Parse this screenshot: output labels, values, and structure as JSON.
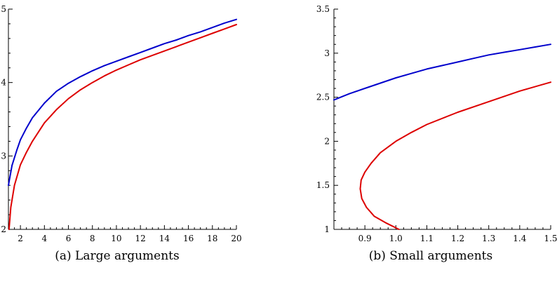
{
  "chart_data": [
    {
      "type": "line",
      "caption": "(a) Large arguments",
      "xlim": [
        1,
        20
      ],
      "ylim": [
        2,
        5
      ],
      "xticks": [
        2,
        4,
        6,
        8,
        10,
        12,
        14,
        16,
        18,
        20
      ],
      "xtick_labels": [
        "2",
        "4",
        "6",
        "8",
        "10",
        "12",
        "14",
        "16",
        "18",
        "20"
      ],
      "yticks": [
        2,
        3,
        4,
        5
      ],
      "ytick_labels": [
        "2",
        "3",
        "4",
        "5"
      ],
      "series": [
        {
          "color": "#0000cc",
          "points": [
            [
              1,
              2.6
            ],
            [
              1.3,
              2.87
            ],
            [
              1.7,
              3.08
            ],
            [
              2,
              3.22
            ],
            [
              2.5,
              3.38
            ],
            [
              3,
              3.52
            ],
            [
              4,
              3.72
            ],
            [
              5,
              3.88
            ],
            [
              6,
              3.99
            ],
            [
              7,
              4.08
            ],
            [
              8,
              4.16
            ],
            [
              9,
              4.23
            ],
            [
              10,
              4.29
            ],
            [
              11,
              4.35
            ],
            [
              12,
              4.41
            ],
            [
              13,
              4.47
            ],
            [
              14,
              4.53
            ],
            [
              15,
              4.58
            ],
            [
              16,
              4.64
            ],
            [
              17,
              4.69
            ],
            [
              18,
              4.75
            ],
            [
              19,
              4.81
            ],
            [
              20,
              4.86
            ]
          ]
        },
        {
          "color": "#dd0000",
          "points": [
            [
              1.05,
              2.0
            ],
            [
              1.2,
              2.3
            ],
            [
              1.5,
              2.6
            ],
            [
              2,
              2.88
            ],
            [
              2.5,
              3.05
            ],
            [
              3,
              3.2
            ],
            [
              4,
              3.45
            ],
            [
              5,
              3.63
            ],
            [
              6,
              3.78
            ],
            [
              7,
              3.9
            ],
            [
              8,
              4.0
            ],
            [
              9,
              4.09
            ],
            [
              10,
              4.17
            ],
            [
              11,
              4.24
            ],
            [
              12,
              4.31
            ],
            [
              13,
              4.37
            ],
            [
              14,
              4.43
            ],
            [
              15,
              4.49
            ],
            [
              16,
              4.55
            ],
            [
              17,
              4.61
            ],
            [
              18,
              4.67
            ],
            [
              19,
              4.73
            ],
            [
              20,
              4.79
            ]
          ]
        }
      ]
    },
    {
      "type": "line",
      "caption": "(b) Small arguments",
      "xlim": [
        0.8,
        1.5
      ],
      "ylim": [
        1,
        3.5
      ],
      "xticks": [
        0.9,
        1.0,
        1.1,
        1.2,
        1.3,
        1.4,
        1.5
      ],
      "xtick_labels": [
        "0.9",
        "1.0",
        "1.1",
        "1.2",
        "1.3",
        "1.4",
        "1.5"
      ],
      "yticks": [
        1,
        1.5,
        2,
        2.5,
        3,
        3.5
      ],
      "ytick_labels": [
        "1",
        "1.5",
        "2",
        "2.5",
        "3",
        "3.5"
      ],
      "series": [
        {
          "color": "#0000cc",
          "points": [
            [
              0.8,
              2.47
            ],
            [
              0.85,
              2.54
            ],
            [
              0.9,
              2.6
            ],
            [
              0.95,
              2.66
            ],
            [
              1.0,
              2.72
            ],
            [
              1.05,
              2.77
            ],
            [
              1.1,
              2.82
            ],
            [
              1.15,
              2.86
            ],
            [
              1.2,
              2.9
            ],
            [
              1.25,
              2.94
            ],
            [
              1.3,
              2.98
            ],
            [
              1.35,
              3.01
            ],
            [
              1.4,
              3.04
            ],
            [
              1.45,
              3.07
            ],
            [
              1.5,
              3.1
            ]
          ]
        },
        {
          "color": "#dd0000",
          "points": [
            [
              1.01,
              1.0
            ],
            [
              0.97,
              1.07
            ],
            [
              0.93,
              1.15
            ],
            [
              0.905,
              1.25
            ],
            [
              0.89,
              1.35
            ],
            [
              0.885,
              1.46
            ],
            [
              0.888,
              1.56
            ],
            [
              0.9,
              1.65
            ],
            [
              0.92,
              1.75
            ],
            [
              0.95,
              1.87
            ],
            [
              1.0,
              2.0
            ],
            [
              1.05,
              2.1
            ],
            [
              1.1,
              2.19
            ],
            [
              1.2,
              2.33
            ],
            [
              1.3,
              2.45
            ],
            [
              1.4,
              2.57
            ],
            [
              1.5,
              2.67
            ]
          ]
        }
      ]
    }
  ]
}
